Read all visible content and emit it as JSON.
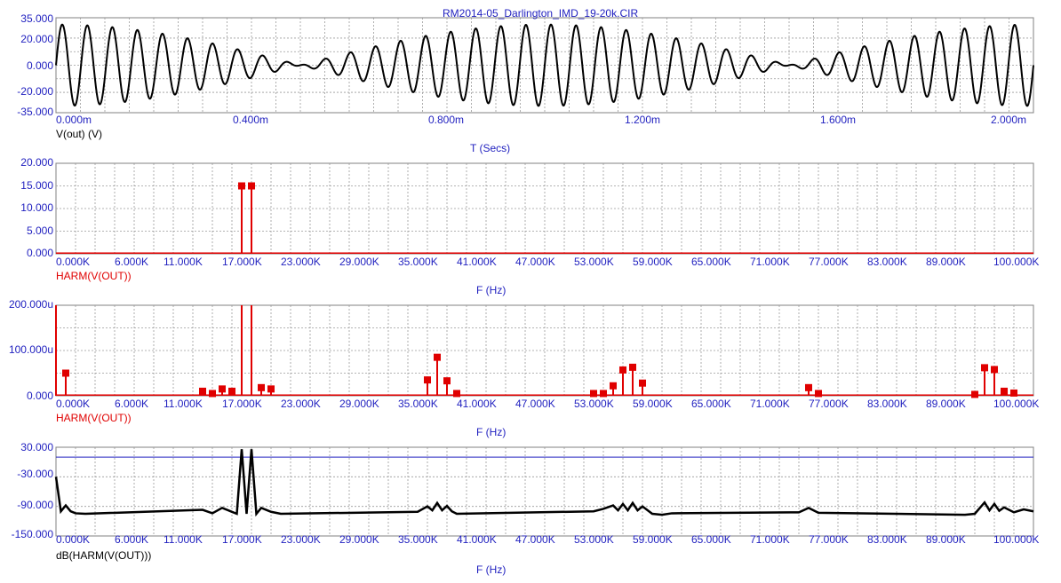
{
  "window_title": "RM2014-05_Darlington_IMD_19-20k.CIR",
  "colors": {
    "axis_text": "#1f1fbf",
    "grid": "#9a9a9a",
    "trace_black": "#000000",
    "trace_red": "#e00000",
    "frame": "#808080"
  },
  "chart_data": [
    {
      "type": "line",
      "trace_label": "V(out) (V)",
      "xlabel": "T (Secs)",
      "ylabel": "",
      "xlim": [
        0,
        0.002
      ],
      "ylim": [
        -35,
        35
      ],
      "x_tick_labels": [
        "0.000m",
        "0.400m",
        "0.800m",
        "1.200m",
        "1.600m",
        "2.000m"
      ],
      "y_tick_labels": [
        "35.000",
        "20.000",
        "0.000",
        "-20.000",
        "-35.000"
      ],
      "grid": true,
      "series": [
        {
          "name": "V(out) (V)",
          "signal": "two-tone 19 kHz + 20 kHz sum",
          "amplitude_each": 15
        }
      ]
    },
    {
      "type": "bar",
      "trace_label": "HARM(V(OUT))",
      "xlabel": "F (Hz)",
      "xlim": [
        0,
        100000
      ],
      "ylim": [
        0,
        20
      ],
      "x_tick_labels": [
        "0.000K",
        "6.000K",
        "11.000K",
        "17.000K",
        "23.000K",
        "29.000K",
        "35.000K",
        "41.000K",
        "47.000K",
        "53.000K",
        "59.000K",
        "65.000K",
        "71.000K",
        "77.000K",
        "83.000K",
        "89.000K",
        "100.000K"
      ],
      "y_tick_labels": [
        "20.000",
        "15.000",
        "10.000",
        "5.000",
        "0.000"
      ],
      "grid": true,
      "points": [
        {
          "x": 19000,
          "y": 15
        },
        {
          "x": 20000,
          "y": 15
        }
      ],
      "floor": 0.3
    },
    {
      "type": "bar",
      "trace_label": "HARM(V(OUT))",
      "xlabel": "F (Hz)",
      "xlim": [
        0,
        100000
      ],
      "ylim": [
        0,
        200
      ],
      "y_tick_labels": [
        "200.000u",
        "100.000u",
        "0.000"
      ],
      "x_tick_labels": [
        "0.000K",
        "6.000K",
        "11.000K",
        "17.000K",
        "23.000K",
        "29.000K",
        "35.000K",
        "41.000K",
        "47.000K",
        "53.000K",
        "59.000K",
        "65.000K",
        "71.000K",
        "77.000K",
        "83.000K",
        "89.000K",
        "100.000K"
      ],
      "grid": true,
      "points": [
        {
          "x": 0,
          "y": 200
        },
        {
          "x": 1000,
          "y": 50
        },
        {
          "x": 15000,
          "y": 10
        },
        {
          "x": 16000,
          "y": 5
        },
        {
          "x": 17000,
          "y": 15
        },
        {
          "x": 18000,
          "y": 10
        },
        {
          "x": 19000,
          "y": 200
        },
        {
          "x": 20000,
          "y": 200
        },
        {
          "x": 21000,
          "y": 18
        },
        {
          "x": 22000,
          "y": 15
        },
        {
          "x": 38000,
          "y": 35
        },
        {
          "x": 39000,
          "y": 85
        },
        {
          "x": 40000,
          "y": 33
        },
        {
          "x": 41000,
          "y": 5
        },
        {
          "x": 55000,
          "y": 5
        },
        {
          "x": 56000,
          "y": 5
        },
        {
          "x": 57000,
          "y": 22
        },
        {
          "x": 58000,
          "y": 57
        },
        {
          "x": 59000,
          "y": 63
        },
        {
          "x": 60000,
          "y": 28
        },
        {
          "x": 77000,
          "y": 18
        },
        {
          "x": 78000,
          "y": 5
        },
        {
          "x": 94000,
          "y": 3
        },
        {
          "x": 95000,
          "y": 62
        },
        {
          "x": 96000,
          "y": 58
        },
        {
          "x": 97000,
          "y": 10
        },
        {
          "x": 98000,
          "y": 6
        }
      ],
      "floor": 3
    },
    {
      "type": "line",
      "trace_label": "dB(HARM(V(OUT)))",
      "xlabel": "F (Hz)",
      "xlim": [
        0,
        100000
      ],
      "ylim": [
        -150,
        30
      ],
      "y_tick_labels": [
        "30.000",
        "-30.000",
        "-90.000",
        "-150.000"
      ],
      "x_tick_labels": [
        "0.000K",
        "6.000K",
        "11.000K",
        "17.000K",
        "23.000K",
        "29.000K",
        "35.000K",
        "41.000K",
        "47.000K",
        "53.000K",
        "59.000K",
        "65.000K",
        "71.000K",
        "77.000K",
        "83.000K",
        "89.000K",
        "100.000K"
      ],
      "grid": true,
      "reference_line_db": 10,
      "series": [
        {
          "name": "dB(HARM(V(OUT)))",
          "x": [
            0,
            500,
            1000,
            1500,
            2000,
            3000,
            15000,
            16000,
            17000,
            18000,
            18500,
            19000,
            19500,
            20000,
            20500,
            21000,
            22000,
            23000,
            37000,
            38000,
            38500,
            39000,
            39500,
            40000,
            40500,
            41000,
            55000,
            56000,
            57000,
            57500,
            58000,
            58500,
            59000,
            59500,
            60000,
            61000,
            62000,
            63000,
            76000,
            77000,
            78000,
            93000,
            94000,
            95000,
            95500,
            96000,
            96500,
            97000,
            98000,
            99000,
            100000
          ],
          "y": [
            -30,
            -100,
            -88,
            -100,
            -104,
            -105,
            -97,
            -104,
            -93,
            -101,
            -105,
            26,
            -105,
            26,
            -105,
            -93,
            -101,
            -105,
            -101,
            -90,
            -98,
            -83,
            -98,
            -89,
            -100,
            -105,
            -100,
            -95,
            -88,
            -98,
            -85,
            -98,
            -83,
            -98,
            -90,
            -105,
            -107,
            -104,
            -102,
            -93,
            -103,
            -107,
            -105,
            -82,
            -98,
            -85,
            -99,
            -92,
            -102,
            -96,
            -100
          ]
        }
      ]
    }
  ]
}
